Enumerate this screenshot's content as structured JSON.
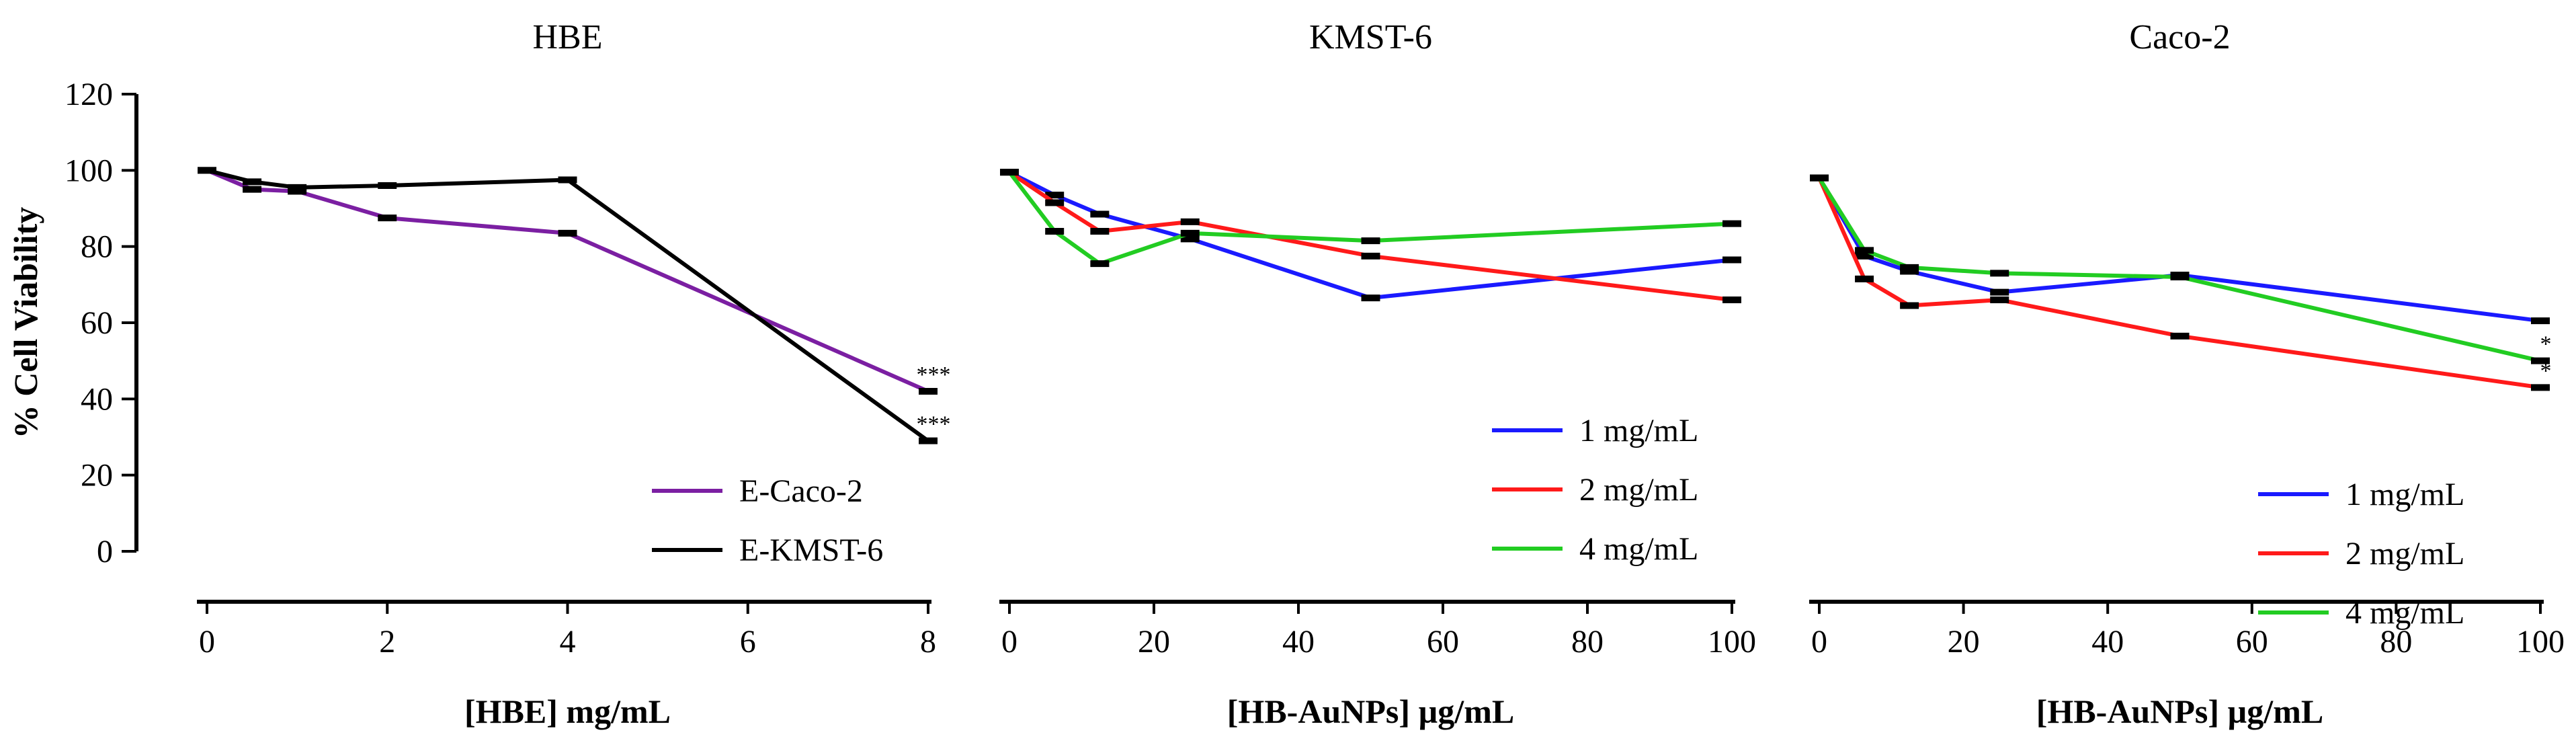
{
  "chart_data": [
    {
      "type": "line",
      "title": "HBE",
      "xlabel": "[HBE] mg/mL",
      "ylabel": "% Cell Viability",
      "xlim": [
        0,
        8
      ],
      "ylim": [
        0,
        120
      ],
      "x_ticks": [
        "0",
        "2",
        "4",
        "6",
        "8"
      ],
      "y_ticks": [
        "0",
        "20",
        "40",
        "60",
        "80",
        "100",
        "120"
      ],
      "legend_position": "bottom-right",
      "series": [
        {
          "name": "E-Caco-2",
          "color": "#7b1fa2",
          "x": [
            0,
            0.5,
            1,
            2,
            4,
            8
          ],
          "y": [
            100,
            95,
            94.5,
            87.5,
            83.5,
            42
          ]
        },
        {
          "name": "E-KMST-6",
          "color": "#000000",
          "x": [
            0,
            0.5,
            1,
            2,
            4,
            8
          ],
          "y": [
            100,
            97,
            95.5,
            96,
            97.5,
            29
          ]
        }
      ],
      "annotations": [
        {
          "text": "***",
          "x": 8,
          "y": 42
        },
        {
          "text": "***",
          "x": 8,
          "y": 29
        }
      ]
    },
    {
      "type": "line",
      "title": "KMST-6",
      "xlabel": "[HB-AuNPs] µg/mL",
      "ylabel": "",
      "xlim": [
        0,
        100
      ],
      "ylim": [
        0,
        120
      ],
      "x_ticks": [
        "0",
        "20",
        "40",
        "60",
        "80",
        "100"
      ],
      "legend_position": "bottom-right",
      "series": [
        {
          "name": "1 mg/mL",
          "color": "#1a1aff",
          "x": [
            0,
            6.25,
            12.5,
            25,
            50,
            100
          ],
          "y": [
            99.5,
            93.5,
            88.5,
            82,
            66.5,
            76.5
          ]
        },
        {
          "name": "2 mg/mL",
          "color": "#ff1a1a",
          "x": [
            0,
            6.25,
            12.5,
            25,
            50,
            100
          ],
          "y": [
            99.5,
            91.5,
            84,
            86.5,
            77.5,
            66
          ]
        },
        {
          "name": "4 mg/mL",
          "color": "#22cc22",
          "x": [
            0,
            6.25,
            12.5,
            25,
            50,
            100
          ],
          "y": [
            99.5,
            84,
            75.5,
            83.5,
            81.5,
            86
          ]
        }
      ],
      "annotations": []
    },
    {
      "type": "line",
      "title": "Caco-2",
      "xlabel": "[HB-AuNPs] µg/mL",
      "ylabel": "",
      "xlim": [
        0,
        100
      ],
      "ylim": [
        0,
        120
      ],
      "x_ticks": [
        "0",
        "20",
        "40",
        "60",
        "80",
        "100"
      ],
      "legend_position": "bottom-right",
      "series": [
        {
          "name": "1 mg/mL",
          "color": "#1a1aff",
          "x": [
            0,
            6.25,
            12.5,
            25,
            50,
            100
          ],
          "y": [
            98,
            77.5,
            73.5,
            68,
            72.5,
            60.5
          ]
        },
        {
          "name": "2 mg/mL",
          "color": "#ff1a1a",
          "x": [
            0,
            6.25,
            12.5,
            25,
            50,
            100
          ],
          "y": [
            98,
            71.5,
            64.5,
            66,
            56.5,
            43
          ]
        },
        {
          "name": "4 mg/mL",
          "color": "#22cc22",
          "x": [
            0,
            6.25,
            12.5,
            25,
            50,
            100
          ],
          "y": [
            98,
            79,
            74.5,
            73,
            72,
            50
          ]
        }
      ],
      "annotations": [
        {
          "text": "*",
          "x": 100,
          "y": 50
        },
        {
          "text": "*",
          "x": 100,
          "y": 43
        }
      ]
    }
  ]
}
